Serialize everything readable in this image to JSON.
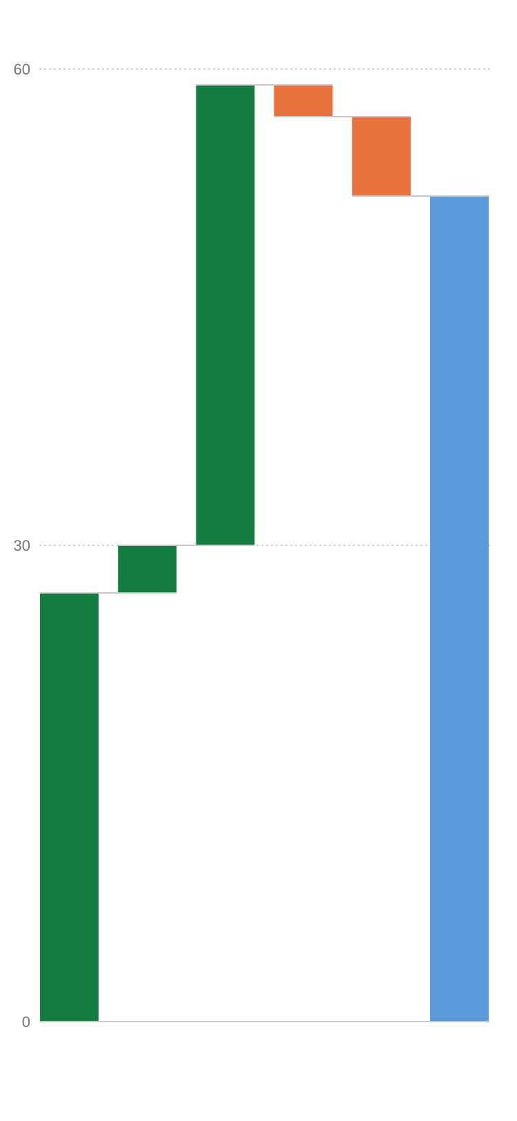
{
  "chart_data": {
    "type": "waterfall",
    "title": "",
    "xlabel": "",
    "ylabel": "",
    "ylim": [
      0,
      60
    ],
    "yticks": [
      0,
      30,
      60
    ],
    "grid": true,
    "legend": "none",
    "steps": [
      {
        "kind": "increase",
        "start": 0,
        "end": 27
      },
      {
        "kind": "increase",
        "start": 27,
        "end": 30
      },
      {
        "kind": "increase",
        "start": 30,
        "end": 59
      },
      {
        "kind": "decrease",
        "start": 59,
        "end": 57
      },
      {
        "kind": "decrease",
        "start": 57,
        "end": 52
      },
      {
        "kind": "total",
        "start": 0,
        "end": 52
      }
    ],
    "colors": {
      "increase": "#127D3F",
      "decrease": "#E8723C",
      "total": "#5B9BD9",
      "grid": "#C8C8C8",
      "connector": "#C8C8C8",
      "axis": "#C8C8C8",
      "tick_label": "#757575"
    }
  }
}
